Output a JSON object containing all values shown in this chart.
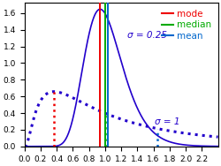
{
  "xlim": [
    0.0,
    2.4
  ],
  "ylim": [
    0.0,
    1.72
  ],
  "xticks": [
    0.0,
    0.2,
    0.4,
    0.6,
    0.8,
    1.0,
    1.2,
    1.4,
    1.6,
    1.8,
    2.0,
    2.2
  ],
  "yticks": [
    0.0,
    0.2,
    0.4,
    0.6,
    0.8,
    1.0,
    1.2,
    1.4,
    1.6
  ],
  "curve_color": "#2200cc",
  "mode_color": "#ee0000",
  "median_color": "#00aa00",
  "mean_color": "#0066cc",
  "sigma1": 0.25,
  "sigma2": 1.0,
  "mu": 0.0,
  "label_sigma1": "σ = 0.25",
  "label_sigma2": "σ = 1",
  "label_mode": "mode",
  "label_median": "median",
  "label_mean": "mean",
  "figsize": [
    2.5,
    1.88
  ],
  "dpi": 100
}
